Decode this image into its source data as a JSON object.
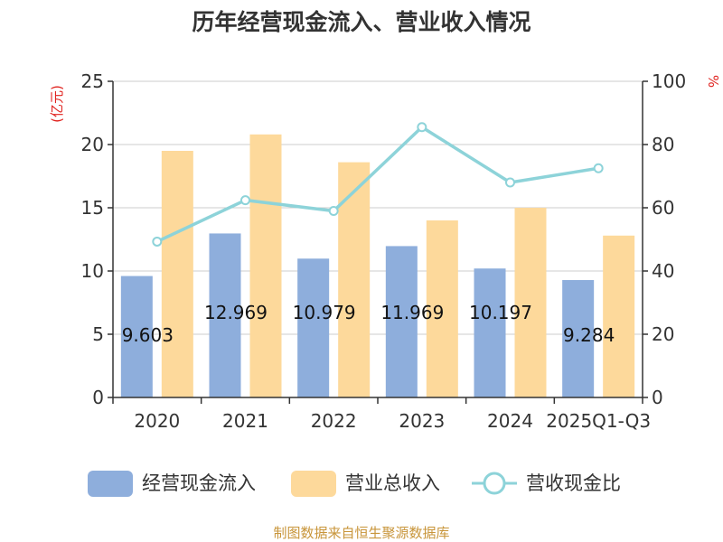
{
  "chart_data": {
    "type": "bar",
    "title": "历年经营现金流入、营业收入情况",
    "categories": [
      "2020",
      "2021",
      "2022",
      "2023",
      "2024",
      "2025Q1-Q3"
    ],
    "series": [
      {
        "name": "经营现金流入",
        "type": "bar",
        "axis": "left",
        "color": "#8eaedc",
        "values": [
          9.603,
          12.969,
          10.979,
          11.969,
          10.197,
          9.284
        ],
        "labels": [
          "9.603",
          "12.969",
          "10.979",
          "11.969",
          "10.197",
          "9.284"
        ]
      },
      {
        "name": "营业总收入",
        "type": "bar",
        "axis": "left",
        "color": "#fdd99b",
        "values": [
          19.5,
          20.8,
          18.6,
          14.0,
          15.0,
          12.8
        ]
      },
      {
        "name": "营收现金比",
        "type": "line",
        "axis": "right",
        "color": "#8dd3d9",
        "values": [
          49.3,
          62.4,
          59.0,
          85.5,
          68.0,
          72.5
        ]
      }
    ],
    "y_left": {
      "unit": "(亿元)",
      "ylim": [
        0,
        25
      ],
      "ticks": [
        "0",
        "5",
        "10",
        "15",
        "20",
        "25"
      ]
    },
    "y_right": {
      "unit": "%",
      "ylim": [
        0,
        100
      ],
      "ticks": [
        "0",
        "20",
        "40",
        "60",
        "80",
        "100"
      ]
    },
    "grid": true,
    "legend": "bottom"
  },
  "source": "制图数据来自恒生聚源数据库",
  "colors": {
    "unit": "#e0231f",
    "source": "#c8953a",
    "grid": "#cccccc",
    "axis": "#333333"
  }
}
